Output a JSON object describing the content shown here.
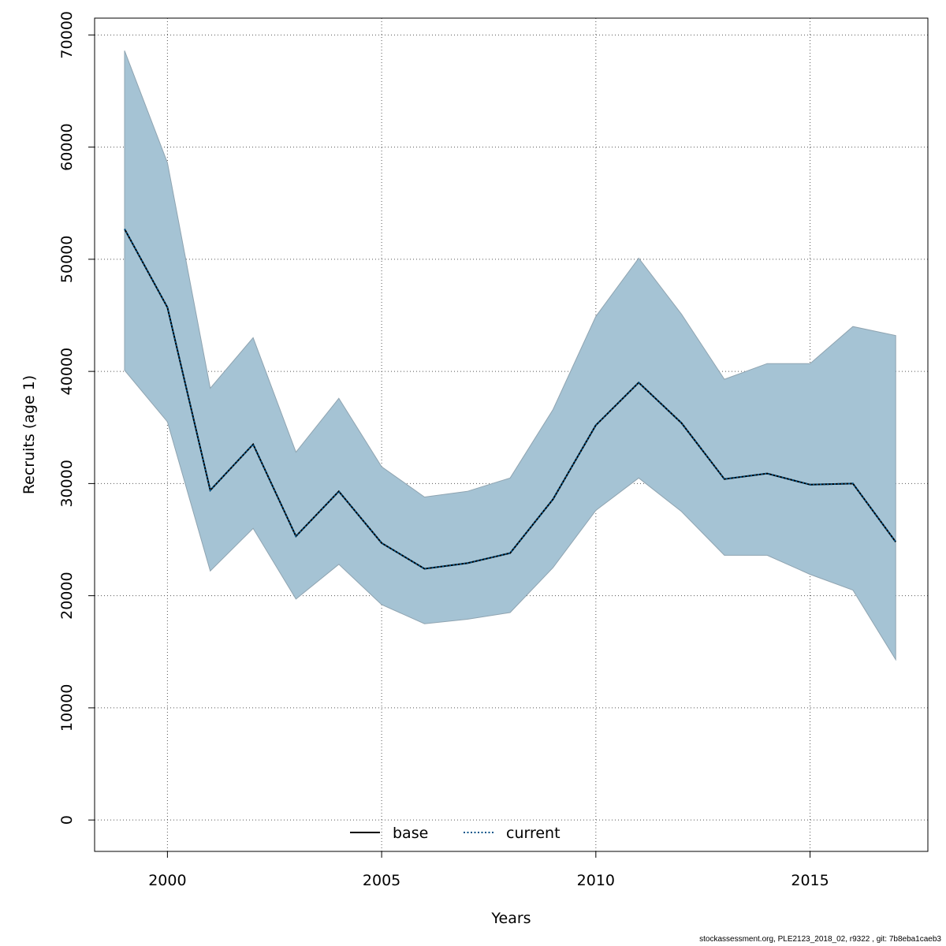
{
  "chart_data": {
    "type": "line",
    "title": "",
    "xlabel": "Years",
    "ylabel": "Recruits (age 1)",
    "xlim": [
      1998.3,
      2017.75
    ],
    "ylim": [
      -2800,
      71500
    ],
    "xticks": [
      2000,
      2005,
      2010,
      2015
    ],
    "yticks": [
      0,
      10000,
      20000,
      30000,
      40000,
      50000,
      60000,
      70000
    ],
    "grid": true,
    "legend_position": "bottom-center",
    "x": [
      1999,
      2000,
      2001,
      2002,
      2003,
      2004,
      2005,
      2006,
      2007,
      2008,
      2009,
      2010,
      2011,
      2012,
      2013,
      2014,
      2015,
      2016,
      2017
    ],
    "band": {
      "upper": [
        68600,
        58600,
        38500,
        43000,
        32800,
        37600,
        31500,
        28800,
        29300,
        30500,
        36600,
        44900,
        50100,
        45100,
        39300,
        40700,
        40700,
        44000,
        43200
      ],
      "lower": [
        40100,
        35500,
        22200,
        26000,
        19700,
        22800,
        19200,
        17500,
        17900,
        18500,
        22500,
        27600,
        30500,
        27500,
        23600,
        23600,
        21900,
        20500,
        14300
      ],
      "fill_color": "#a5c3d4",
      "edge_color": "#8fa4b1"
    },
    "series": [
      {
        "name": "base",
        "values": [
          52700,
          45700,
          29400,
          33500,
          25300,
          29300,
          24700,
          22400,
          22900,
          23800,
          28600,
          35200,
          39000,
          35400,
          30400,
          30900,
          29900,
          30000,
          24800
        ],
        "color": "#000000",
        "style": "solid"
      },
      {
        "name": "current",
        "values": [
          52700,
          45700,
          29400,
          33500,
          25300,
          29300,
          24700,
          22400,
          22900,
          23800,
          28600,
          35200,
          39000,
          35400,
          30400,
          30900,
          29900,
          30000,
          24800
        ],
        "color": "#00558a",
        "style": "dotted"
      }
    ]
  },
  "footer": "stockassessment.org, PLE2123_2018_02, r9322 , git: 7b8eba1caeb3"
}
